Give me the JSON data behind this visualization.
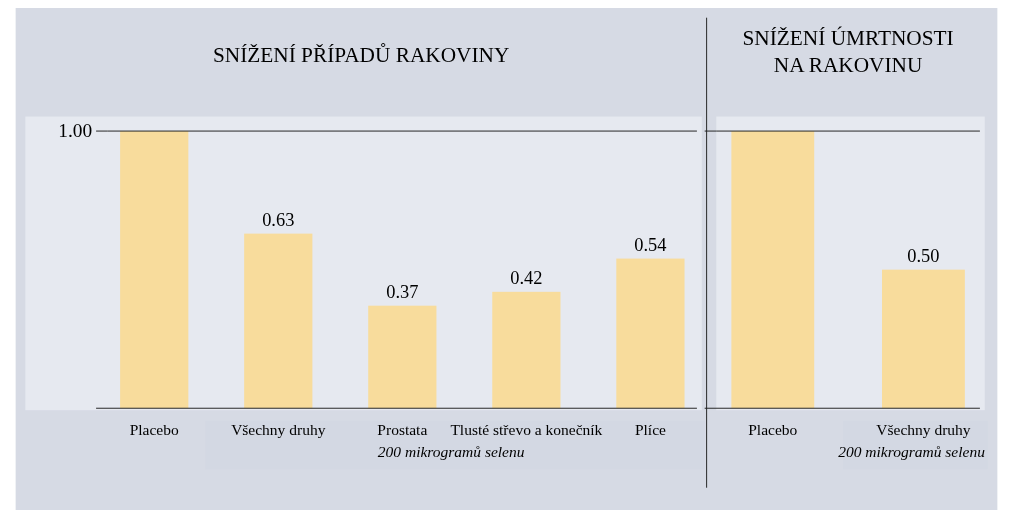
{
  "chart_data": [
    {
      "type": "bar",
      "title": "SNÍŽENÍ PŘÍPADŮ RAKOVINY",
      "categories": [
        "Placebo",
        "Všechny druhy",
        "Prostata",
        "Tlusté střevo a konečník",
        "Plíce"
      ],
      "values": [
        1.0,
        0.63,
        0.37,
        0.42,
        0.54
      ],
      "value_labels": [
        null,
        "0.63",
        "0.37",
        "0.42",
        "0.54"
      ],
      "color": "#f8dc9c",
      "ylim": [
        0,
        1
      ],
      "yticks": [
        {
          "value": 1,
          "label": "1.00"
        }
      ],
      "ref_lines": [
        {
          "axis": "y",
          "value": 1
        }
      ],
      "annotations": [
        "200 mikrogramů selenu"
      ]
    },
    {
      "type": "bar",
      "title": "SNÍŽENÍ ÚMRTNOSTI NA RAKOVINU",
      "categories": [
        "Placebo",
        "Všechny druhy"
      ],
      "values": [
        1.0,
        0.5
      ],
      "value_labels": [
        null,
        "0.50"
      ],
      "color": "#f8dc9c",
      "ylim": [
        0,
        1
      ],
      "yticks": [
        {
          "value": 1,
          "label": null
        }
      ],
      "ref_lines": [
        {
          "axis": "y",
          "value": 1
        }
      ],
      "tick_labels": "x",
      "annotations": [
        "200 mikrogramů selenu"
      ]
    }
  ]
}
